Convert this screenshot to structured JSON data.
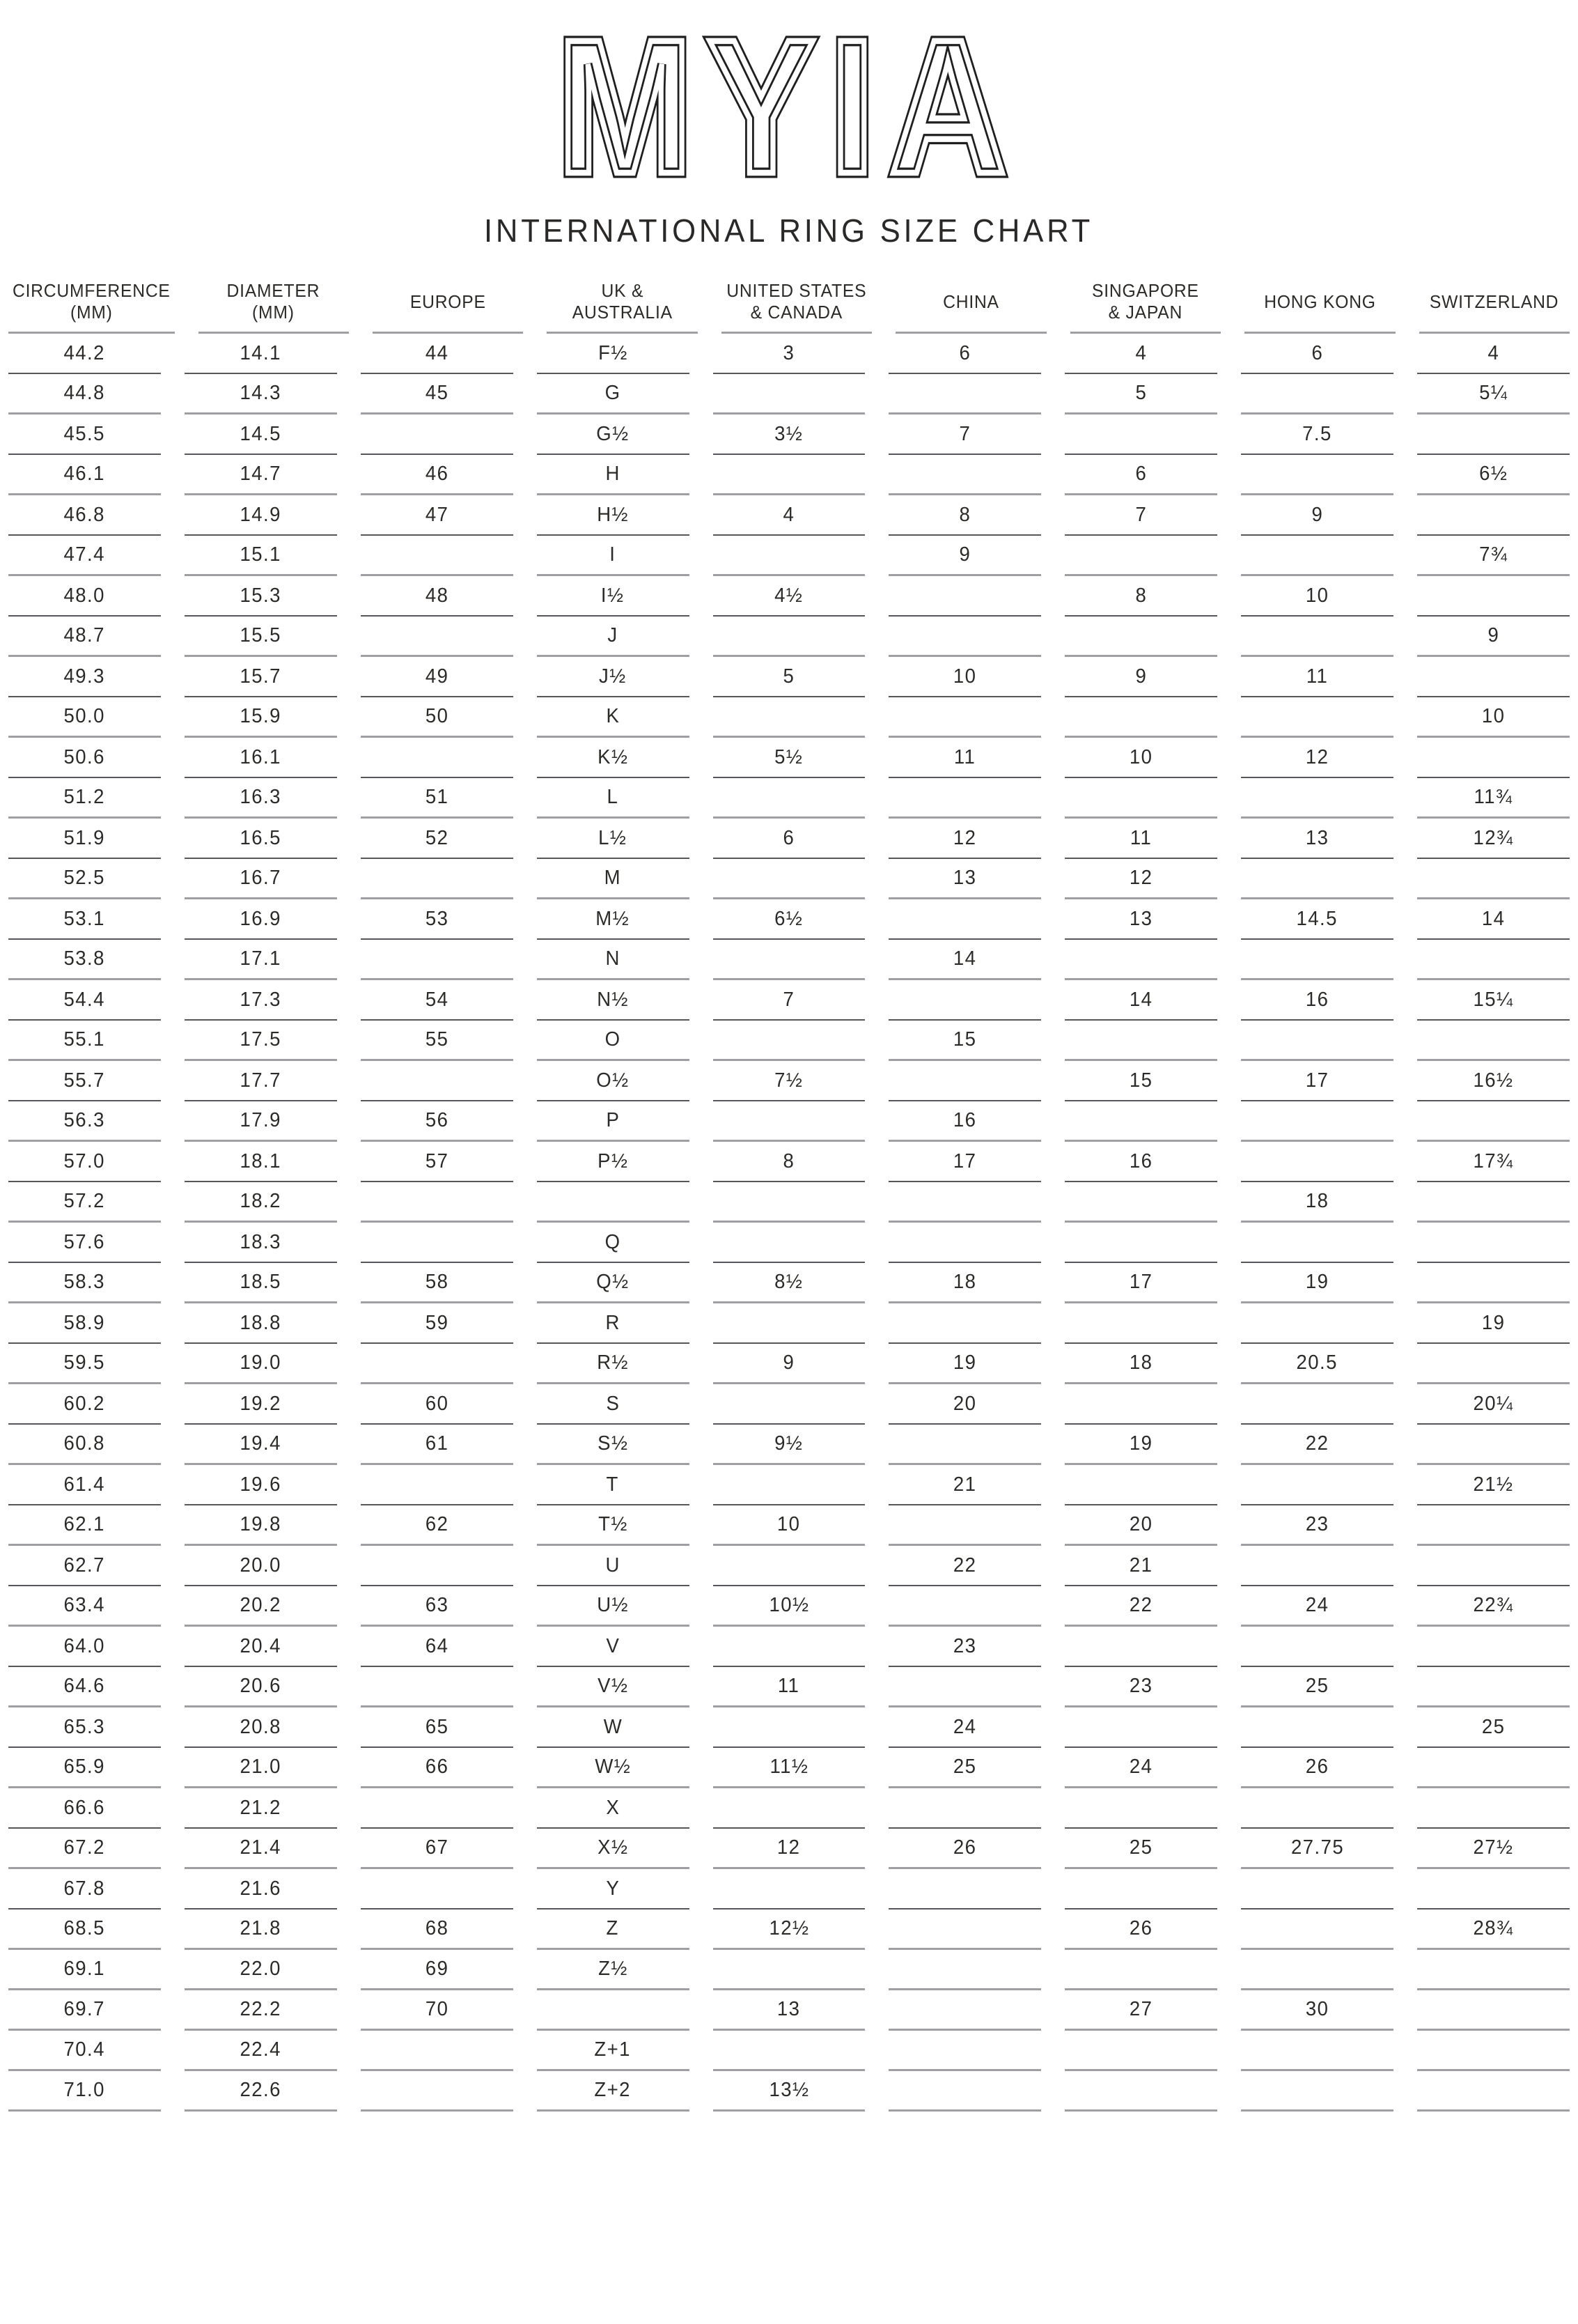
{
  "logo": {
    "text": "MYIA"
  },
  "chart_data": {
    "type": "table",
    "title": "INTERNATIONAL RING SIZE CHART",
    "columns": [
      "CIRCUMFERENCE\n(MM)",
      "DIAMETER\n(MM)",
      "EUROPE",
      "UK &\nAUSTRALIA",
      "UNITED STATES\n& CANADA",
      "CHINA",
      "SINGAPORE\n& JAPAN",
      "HONG KONG",
      "SWITZERLAND"
    ],
    "rows": [
      [
        "44.2",
        "14.1",
        "44",
        "F½",
        "3",
        "6",
        "4",
        "6",
        "4"
      ],
      [
        "44.8",
        "14.3",
        "45",
        "G",
        "",
        "",
        "5",
        "",
        "5¼"
      ],
      [
        "45.5",
        "14.5",
        "",
        "G½",
        "3½",
        "7",
        "",
        "7.5",
        ""
      ],
      [
        "46.1",
        "14.7",
        "46",
        "H",
        "",
        "",
        "6",
        "",
        "6½"
      ],
      [
        "46.8",
        "14.9",
        "47",
        "H½",
        "4",
        "8",
        "7",
        "9",
        ""
      ],
      [
        "47.4",
        "15.1",
        "",
        "I",
        "",
        "9",
        "",
        "",
        "7¾"
      ],
      [
        "48.0",
        "15.3",
        "48",
        "I½",
        "4½",
        "",
        "8",
        "10",
        ""
      ],
      [
        "48.7",
        "15.5",
        "",
        "J",
        "",
        "",
        "",
        "",
        "9"
      ],
      [
        "49.3",
        "15.7",
        "49",
        "J½",
        "5",
        "10",
        "9",
        "11",
        ""
      ],
      [
        "50.0",
        "15.9",
        "50",
        "K",
        "",
        "",
        "",
        "",
        "10"
      ],
      [
        "50.6",
        "16.1",
        "",
        "K½",
        "5½",
        "11",
        "10",
        "12",
        ""
      ],
      [
        "51.2",
        "16.3",
        "51",
        "L",
        "",
        "",
        "",
        "",
        "11¾"
      ],
      [
        "51.9",
        "16.5",
        "52",
        "L½",
        "6",
        "12",
        "11",
        "13",
        "12¾"
      ],
      [
        "52.5",
        "16.7",
        "",
        "M",
        "",
        "13",
        "12",
        "",
        ""
      ],
      [
        "53.1",
        "16.9",
        "53",
        "M½",
        "6½",
        "",
        "13",
        "14.5",
        "14"
      ],
      [
        "53.8",
        "17.1",
        "",
        "N",
        "",
        "14",
        "",
        "",
        ""
      ],
      [
        "54.4",
        "17.3",
        "54",
        "N½",
        "7",
        "",
        "14",
        "16",
        "15¼"
      ],
      [
        "55.1",
        "17.5",
        "55",
        "O",
        "",
        "15",
        "",
        "",
        ""
      ],
      [
        "55.7",
        "17.7",
        "",
        "O½",
        "7½",
        "",
        "15",
        "17",
        "16½"
      ],
      [
        "56.3",
        "17.9",
        "56",
        "P",
        "",
        "16",
        "",
        "",
        ""
      ],
      [
        "57.0",
        "18.1",
        "57",
        "P½",
        "8",
        "17",
        "16",
        "",
        "17¾"
      ],
      [
        "57.2",
        "18.2",
        "",
        "",
        "",
        "",
        "",
        "18",
        ""
      ],
      [
        "57.6",
        "18.3",
        "",
        "Q",
        "",
        "",
        "",
        "",
        ""
      ],
      [
        "58.3",
        "18.5",
        "58",
        "Q½",
        "8½",
        "18",
        "17",
        "19",
        ""
      ],
      [
        "58.9",
        "18.8",
        "59",
        "R",
        "",
        "",
        "",
        "",
        "19"
      ],
      [
        "59.5",
        "19.0",
        "",
        "R½",
        "9",
        "19",
        "18",
        "20.5",
        ""
      ],
      [
        "60.2",
        "19.2",
        "60",
        "S",
        "",
        "20",
        "",
        "",
        "20¼"
      ],
      [
        "60.8",
        "19.4",
        "61",
        "S½",
        "9½",
        "",
        "19",
        "22",
        ""
      ],
      [
        "61.4",
        "19.6",
        "",
        "T",
        "",
        "21",
        "",
        "",
        "21½"
      ],
      [
        "62.1",
        "19.8",
        "62",
        "T½",
        "10",
        "",
        "20",
        "23",
        ""
      ],
      [
        "62.7",
        "20.0",
        "",
        "U",
        "",
        "22",
        "21",
        "",
        ""
      ],
      [
        "63.4",
        "20.2",
        "63",
        "U½",
        "10½",
        "",
        "22",
        "24",
        "22¾"
      ],
      [
        "64.0",
        "20.4",
        "64",
        "V",
        "",
        "23",
        "",
        "",
        ""
      ],
      [
        "64.6",
        "20.6",
        "",
        "V½",
        "11",
        "",
        "23",
        "25",
        ""
      ],
      [
        "65.3",
        "20.8",
        "65",
        "W",
        "",
        "24",
        "",
        "",
        "25"
      ],
      [
        "65.9",
        "21.0",
        "66",
        "W½",
        "11½",
        "25",
        "24",
        "26",
        ""
      ],
      [
        "66.6",
        "21.2",
        "",
        "X",
        "",
        "",
        "",
        "",
        ""
      ],
      [
        "67.2",
        "21.4",
        "67",
        "X½",
        "12",
        "26",
        "25",
        "27.75",
        "27½"
      ],
      [
        "67.8",
        "21.6",
        "",
        "Y",
        "",
        "",
        "",
        "",
        ""
      ],
      [
        "68.5",
        "21.8",
        "68",
        "Z",
        "12½",
        "",
        "26",
        "",
        "28¾"
      ],
      [
        "69.1",
        "22.0",
        "69",
        "Z½",
        "",
        "",
        "",
        "",
        ""
      ],
      [
        "69.7",
        "22.2",
        "70",
        "",
        "13",
        "",
        "27",
        "30",
        ""
      ],
      [
        "70.4",
        "22.4",
        "",
        "Z+1",
        "",
        "",
        "",
        "",
        ""
      ],
      [
        "71.0",
        "22.6",
        "",
        "Z+2",
        "13½",
        "",
        "",
        "",
        ""
      ]
    ]
  }
}
